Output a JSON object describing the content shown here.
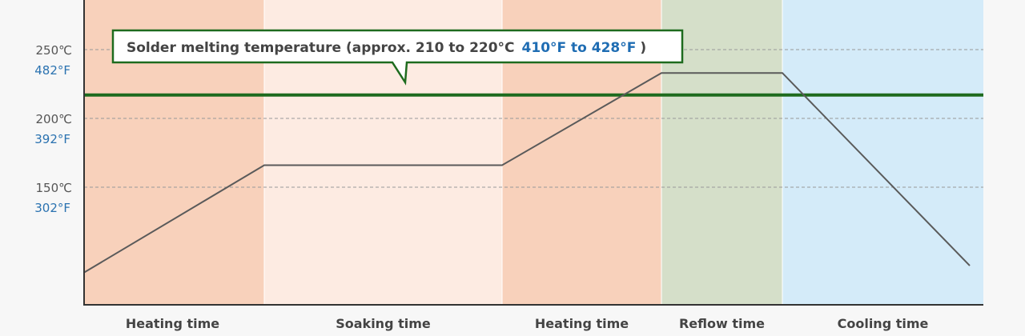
{
  "chart_data": {
    "type": "line",
    "title": "",
    "xlabel": "",
    "ylabel": "",
    "ylim": [
      77,
      298
    ],
    "xlim": [
      0,
      1123
    ],
    "grid": "horizontal dashed",
    "y_ticks": [
      {
        "c": 250,
        "label_c": "250℃",
        "label_f": "482°F"
      },
      {
        "c": 200,
        "label_c": "200℃",
        "label_f": "392°F"
      },
      {
        "c": 150,
        "label_c": "150℃",
        "label_f": "302°F"
      }
    ],
    "phases": [
      {
        "label": "Heating time",
        "start": 0,
        "end": 225,
        "color": "#f8d1bb"
      },
      {
        "label": "Soaking time",
        "start": 225,
        "end": 522,
        "color": "#fdebe2"
      },
      {
        "label": "Heating time",
        "start": 522,
        "end": 721,
        "color": "#f8d1bb"
      },
      {
        "label": "Reflow time",
        "start": 721,
        "end": 872,
        "color": "#d5dfc9"
      },
      {
        "label": "Cooling time",
        "start": 872,
        "end": 1123,
        "color": "#d4ebf9"
      }
    ],
    "series": [
      {
        "name": "Temperature profile",
        "color": "#5a5a5a",
        "x": [
          0,
          225,
          522,
          721,
          872,
          1106
        ],
        "y": [
          88,
          166,
          166,
          233,
          233,
          93
        ]
      }
    ],
    "melting_line": {
      "value": 217,
      "color": "#1e6b1e"
    },
    "annotation": {
      "text": "Solder melting temperature (approx. 210 to 220°C",
      "text_f": "410°F to 428°F",
      "close": ")"
    }
  }
}
